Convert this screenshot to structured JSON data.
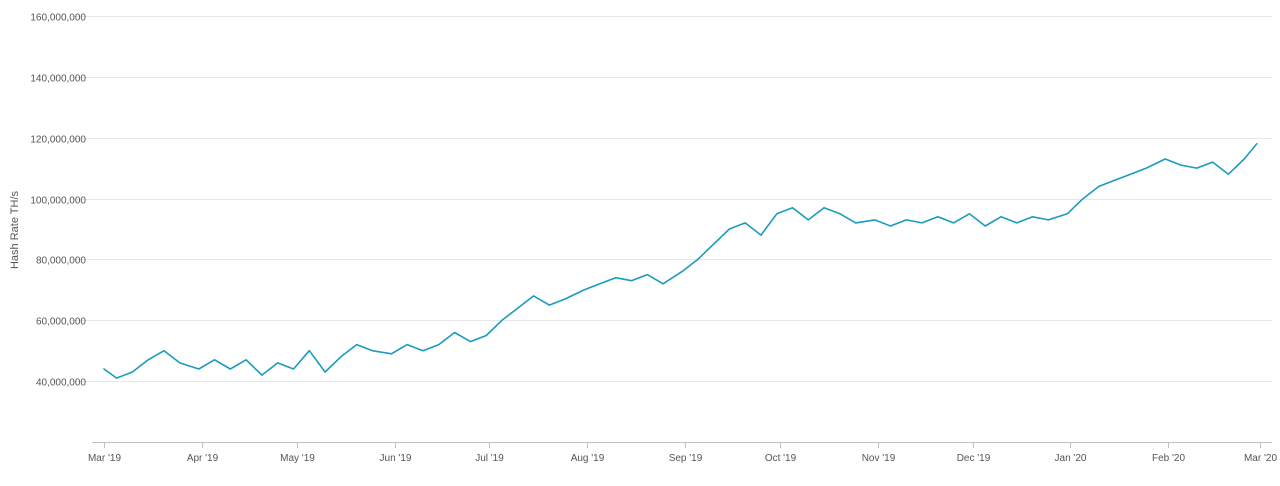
{
  "chart_data": {
    "type": "line",
    "title": "",
    "xlabel": "",
    "ylabel": "Hash Rate TH/s",
    "ylim": [
      20000000,
      160000000
    ],
    "yticks": [
      40000000,
      60000000,
      80000000,
      100000000,
      120000000,
      140000000,
      160000000
    ],
    "ytick_labels": [
      "40,000,000",
      "60,000,000",
      "80,000,000",
      "100,000,000",
      "120,000,000",
      "140,000,000",
      "160,000,000"
    ],
    "x_start": "2019-03-01",
    "x_end": "2020-03-01",
    "x_ticks": [
      {
        "date": "2019-03-01",
        "label": "Mar '19"
      },
      {
        "date": "2019-04-01",
        "label": "Apr '19"
      },
      {
        "date": "2019-05-01",
        "label": "May '19"
      },
      {
        "date": "2019-06-01",
        "label": "Jun '19"
      },
      {
        "date": "2019-07-01",
        "label": "Jul '19"
      },
      {
        "date": "2019-08-01",
        "label": "Aug '19"
      },
      {
        "date": "2019-09-01",
        "label": "Sep '19"
      },
      {
        "date": "2019-10-01",
        "label": "Oct '19"
      },
      {
        "date": "2019-11-01",
        "label": "Nov '19"
      },
      {
        "date": "2019-12-01",
        "label": "Dec '19"
      },
      {
        "date": "2020-01-01",
        "label": "Jan '20"
      },
      {
        "date": "2020-02-01",
        "label": "Feb '20"
      },
      {
        "date": "2020-03-01",
        "label": "Mar '20"
      }
    ],
    "grid": true,
    "legend": "none",
    "series": [
      {
        "color": "#1a9bbf",
        "x": [
          "2019-03-01",
          "2019-03-05",
          "2019-03-10",
          "2019-03-15",
          "2019-03-20",
          "2019-03-25",
          "2019-03-31",
          "2019-04-05",
          "2019-04-10",
          "2019-04-15",
          "2019-04-20",
          "2019-04-25",
          "2019-04-30",
          "2019-05-05",
          "2019-05-10",
          "2019-05-15",
          "2019-05-20",
          "2019-05-25",
          "2019-05-31",
          "2019-06-05",
          "2019-06-10",
          "2019-06-15",
          "2019-06-20",
          "2019-06-25",
          "2019-06-30",
          "2019-07-05",
          "2019-07-10",
          "2019-07-15",
          "2019-07-20",
          "2019-07-25",
          "2019-07-31",
          "2019-08-05",
          "2019-08-10",
          "2019-08-15",
          "2019-08-20",
          "2019-08-25",
          "2019-08-31",
          "2019-09-05",
          "2019-09-10",
          "2019-09-15",
          "2019-09-20",
          "2019-09-25",
          "2019-09-30",
          "2019-10-05",
          "2019-10-10",
          "2019-10-15",
          "2019-10-20",
          "2019-10-25",
          "2019-10-31",
          "2019-11-05",
          "2019-11-10",
          "2019-11-15",
          "2019-11-20",
          "2019-11-25",
          "2019-11-30",
          "2019-12-05",
          "2019-12-10",
          "2019-12-15",
          "2019-12-20",
          "2019-12-25",
          "2019-12-31",
          "2020-01-05",
          "2020-01-10",
          "2020-01-15",
          "2020-01-20",
          "2020-01-25",
          "2020-01-31",
          "2020-02-05",
          "2020-02-10",
          "2020-02-15",
          "2020-02-20",
          "2020-02-25",
          "2020-02-29"
        ],
        "values": [
          44000000,
          41000000,
          43000000,
          47000000,
          50000000,
          46000000,
          44000000,
          47000000,
          44000000,
          47000000,
          42000000,
          46000000,
          44000000,
          50000000,
          43000000,
          48000000,
          52000000,
          50000000,
          49000000,
          52000000,
          50000000,
          52000000,
          56000000,
          53000000,
          55000000,
          60000000,
          64000000,
          68000000,
          65000000,
          67000000,
          70000000,
          72000000,
          74000000,
          73000000,
          75000000,
          72000000,
          76000000,
          80000000,
          85000000,
          90000000,
          92000000,
          88000000,
          95000000,
          97000000,
          93000000,
          97000000,
          95000000,
          92000000,
          93000000,
          91000000,
          93000000,
          92000000,
          94000000,
          92000000,
          95000000,
          91000000,
          94000000,
          92000000,
          94000000,
          93000000,
          95000000,
          100000000,
          104000000,
          106000000,
          108000000,
          110000000,
          113000000,
          111000000,
          110000000,
          112000000,
          108000000,
          113000000,
          118000000
        ]
      }
    ]
  }
}
